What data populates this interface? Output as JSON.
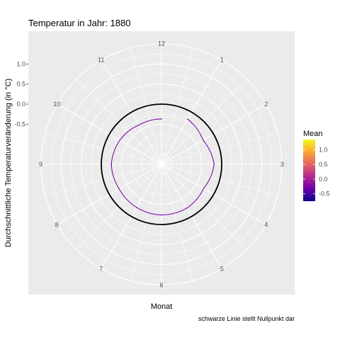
{
  "chart_data": {
    "type": "line",
    "coordinate_system": "polar",
    "title": "Temperatur in Jahr: 1880",
    "xlabel": "Monat",
    "ylabel": "Durchschnittliche Temperaturveränderung (in °C)",
    "caption": "schwarze Linie stellt Nullpunkt dar",
    "month_labels": [
      "1",
      "2",
      "3",
      "4",
      "5",
      "6",
      "7",
      "8",
      "9",
      "10",
      "11",
      "12"
    ],
    "y_ticks": [
      -0.5,
      0.0,
      0.5,
      1.0
    ],
    "y_tick_labels": [
      "-0.5",
      "0.0",
      "0.5",
      "1.0"
    ],
    "ylim": [
      -1.5,
      1.5
    ],
    "zero_line": 0.0,
    "background": "#ebebeb",
    "grid": true,
    "series": [
      {
        "x": [
          1,
          2,
          3,
          4,
          5,
          6,
          7,
          8,
          9,
          10,
          11,
          12
        ],
        "values": [
          -0.2,
          -0.3,
          -0.19,
          -0.29,
          -0.24,
          -0.24,
          -0.26,
          -0.28,
          -0.25,
          -0.3,
          -0.37,
          -0.37
        ],
        "color": "#7a0ca8"
      }
    ],
    "legend": {
      "title": "Mean",
      "position": "right",
      "ticks": [
        -0.5,
        0.0,
        0.5,
        1.0
      ],
      "tick_labels": [
        "-0.5",
        "0.0",
        "0.5",
        "1.0"
      ],
      "range": [
        -0.75,
        1.35
      ],
      "gradient_colors": [
        "#0d0887",
        "#6a00a8",
        "#b12a90",
        "#e16462",
        "#fca636",
        "#f0f921"
      ]
    }
  }
}
